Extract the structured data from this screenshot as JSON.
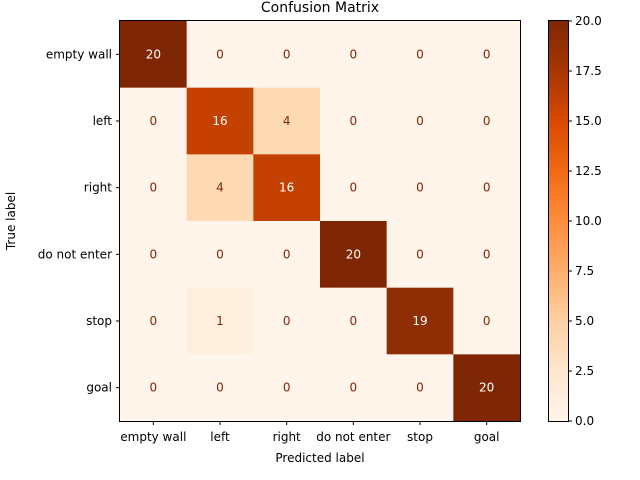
{
  "chart_data": {
    "type": "heatmap",
    "title": "Confusion Matrix",
    "xlabel": "Predicted label",
    "ylabel": "True label",
    "x_categories": [
      "empty wall",
      "left",
      "right",
      "do not enter",
      "stop",
      "goal"
    ],
    "y_categories": [
      "empty wall",
      "left",
      "right",
      "do not enter",
      "stop",
      "goal"
    ],
    "values": [
      [
        20,
        0,
        0,
        0,
        0,
        0
      ],
      [
        0,
        16,
        4,
        0,
        0,
        0
      ],
      [
        0,
        4,
        16,
        0,
        0,
        0
      ],
      [
        0,
        0,
        0,
        20,
        0,
        0
      ],
      [
        0,
        1,
        0,
        0,
        19,
        0
      ],
      [
        0,
        0,
        0,
        0,
        0,
        20
      ]
    ],
    "colorscale": {
      "name": "Oranges",
      "min": 0,
      "max": 20,
      "ticks": [
        "0.0",
        "2.5",
        "5.0",
        "7.5",
        "10.0",
        "12.5",
        "15.0",
        "17.5",
        "20.0"
      ]
    },
    "grid": false,
    "colorbar_position": "right"
  }
}
